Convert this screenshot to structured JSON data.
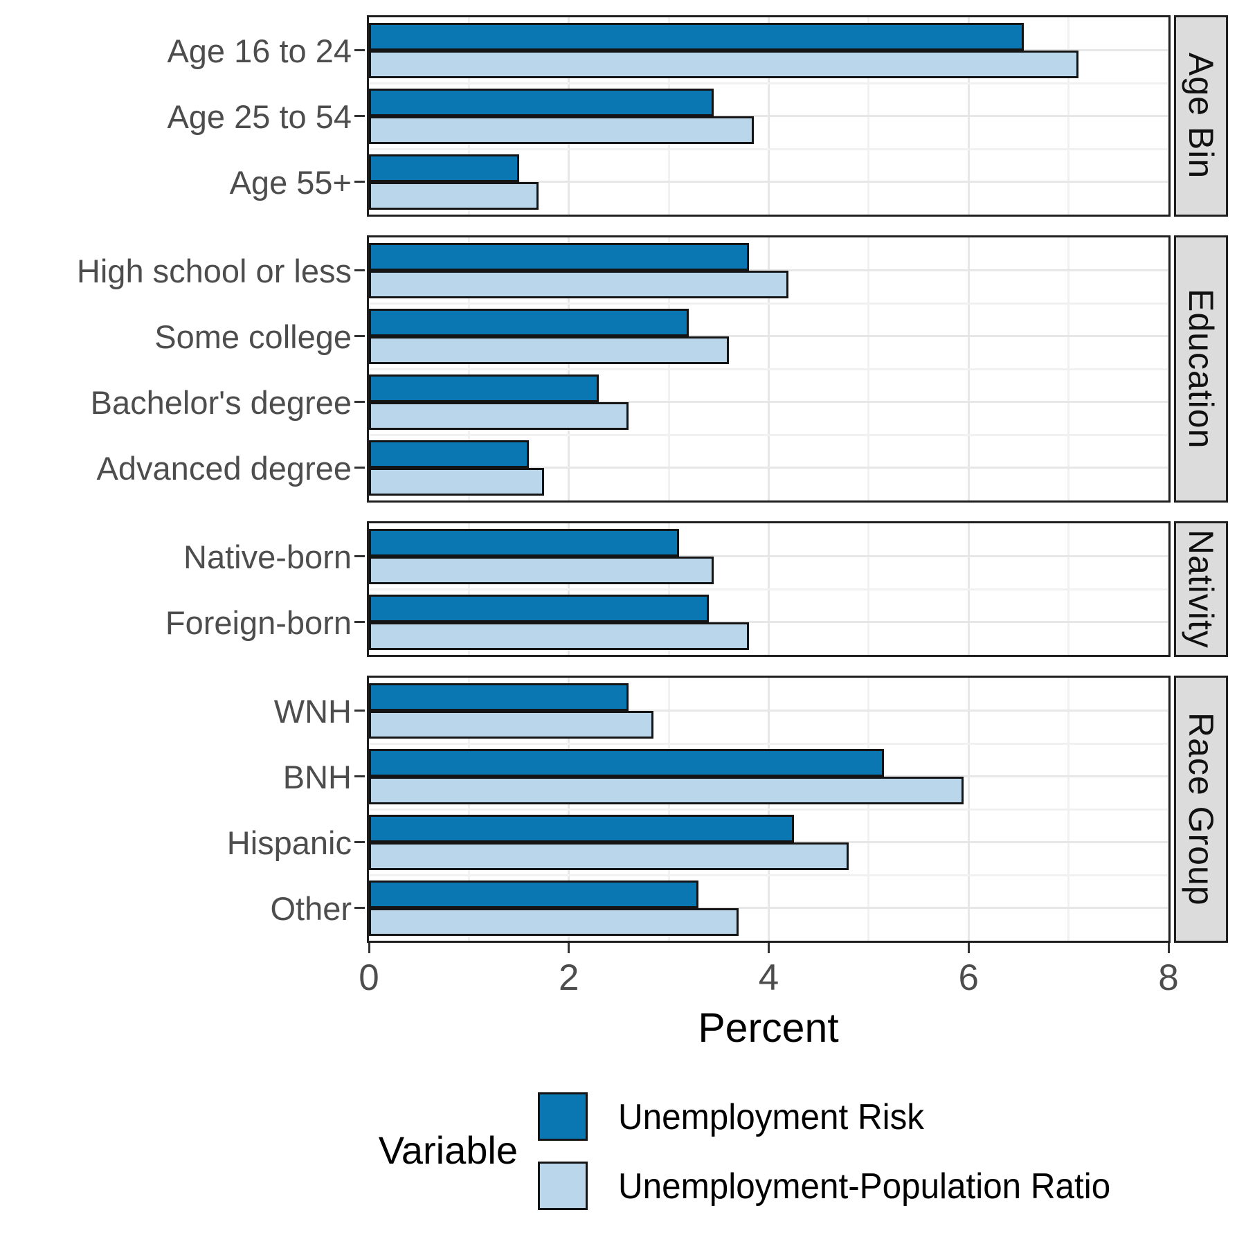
{
  "chart_data": {
    "type": "bar",
    "orientation": "horizontal",
    "xlabel": "Percent",
    "xlim": [
      0,
      8
    ],
    "x_ticks": [
      0,
      2,
      4,
      6,
      8
    ],
    "x_minor_ticks": [
      1,
      3,
      5,
      7
    ],
    "grid": true,
    "series_names": [
      "Unemployment Risk",
      "Unemployment-Population Ratio"
    ],
    "legend": {
      "title": "Variable",
      "position": "bottom",
      "series": [
        {
          "name": "Unemployment Risk",
          "color": "#0a76b2"
        },
        {
          "name": "Unemployment-Population Ratio",
          "color": "#b9d6ea"
        }
      ]
    },
    "facets": [
      {
        "label": "Age Bin",
        "rows": [
          {
            "category": "Age 16 to 24",
            "values": [
              6.55,
              7.1
            ]
          },
          {
            "category": "Age 25 to 54",
            "values": [
              3.45,
              3.85
            ]
          },
          {
            "category": "Age 55+",
            "values": [
              1.5,
              1.7
            ]
          }
        ]
      },
      {
        "label": "Education",
        "rows": [
          {
            "category": "High school or less",
            "values": [
              3.8,
              4.2
            ]
          },
          {
            "category": "Some college",
            "values": [
              3.2,
              3.6
            ]
          },
          {
            "category": "Bachelor's degree",
            "values": [
              2.3,
              2.6
            ]
          },
          {
            "category": "Advanced degree",
            "values": [
              1.6,
              1.75
            ]
          }
        ]
      },
      {
        "label": "Nativity",
        "rows": [
          {
            "category": "Native-born",
            "values": [
              3.1,
              3.45
            ]
          },
          {
            "category": "Foreign-born",
            "values": [
              3.4,
              3.8
            ]
          }
        ]
      },
      {
        "label": "Race Group",
        "rows": [
          {
            "category": "WNH",
            "values": [
              2.6,
              2.85
            ]
          },
          {
            "category": "BNH",
            "values": [
              5.15,
              5.95
            ]
          },
          {
            "category": "Hispanic",
            "values": [
              4.25,
              4.8
            ]
          },
          {
            "category": "Other",
            "values": [
              3.3,
              3.7
            ]
          }
        ]
      }
    ],
    "colors": {
      "bar_dark": "#0a76b2",
      "bar_light": "#b9d6ea",
      "bar_border": "#141414",
      "panel_border": "#1f1f1f",
      "strip_bg": "#dcdcdc",
      "grid_major": "#e7e7e7",
      "grid_minor": "#f1f1f1",
      "axis_text": "#4d4d4d"
    }
  }
}
